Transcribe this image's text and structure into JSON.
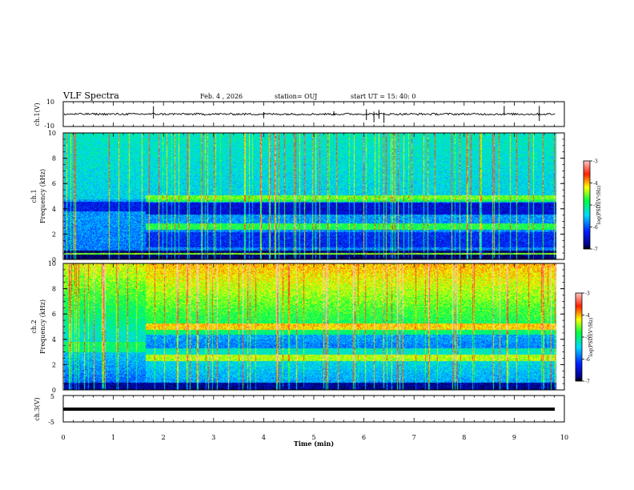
{
  "header": {
    "title": "VLF Spectra",
    "date": "Feb. 4 , 2026",
    "station": "station= OUJ",
    "start": "start UT =  15: 40: 0"
  },
  "chart_data": [
    {
      "type": "line",
      "name": "channel-1-waveform",
      "ylabel": "ch.1(V)",
      "ylim": [
        -10,
        10
      ],
      "yticks": [
        "10",
        "-10"
      ],
      "baseline": 0
    },
    {
      "type": "heatmap",
      "name": "channel-1-spectrogram",
      "ylabel_line1": "ch.1",
      "ylabel_line2": "Frequency (kHz)",
      "ylim": [
        0,
        10
      ],
      "yticks": [
        "0",
        "2",
        "4",
        "6",
        "8",
        "10"
      ],
      "colorbar_label": "log(PSD)(V²/Hz)",
      "colorbar_ticks": [
        "-3",
        "-4",
        "-5",
        "-6",
        "-7"
      ],
      "colorbar_range": [
        -7,
        -3
      ]
    },
    {
      "type": "heatmap",
      "name": "channel-2-spectrogram",
      "ylabel_line1": "ch.2",
      "ylabel_line2": "Frequency (kHz)",
      "ylim": [
        0,
        10
      ],
      "yticks": [
        "0",
        "2",
        "4",
        "6",
        "8",
        "10"
      ],
      "colorbar_label": "log(PSD)(V²/Hz)",
      "colorbar_ticks": [
        "-3",
        "-4",
        "-5",
        "-6",
        "-7"
      ],
      "colorbar_range": [
        -7,
        -3
      ]
    },
    {
      "type": "line",
      "name": "channel-3-waveform",
      "ylabel": "ch.3(V)",
      "ylim": [
        -5,
        5
      ],
      "yticks": [
        "5",
        "-5"
      ],
      "baseline": -1
    }
  ],
  "xaxis": {
    "label": "Time (min)",
    "range": [
      0,
      10
    ],
    "ticks": [
      "0",
      "1",
      "2",
      "3",
      "4",
      "5",
      "6",
      "7",
      "8",
      "9",
      "10"
    ],
    "data_end": 9.83
  }
}
